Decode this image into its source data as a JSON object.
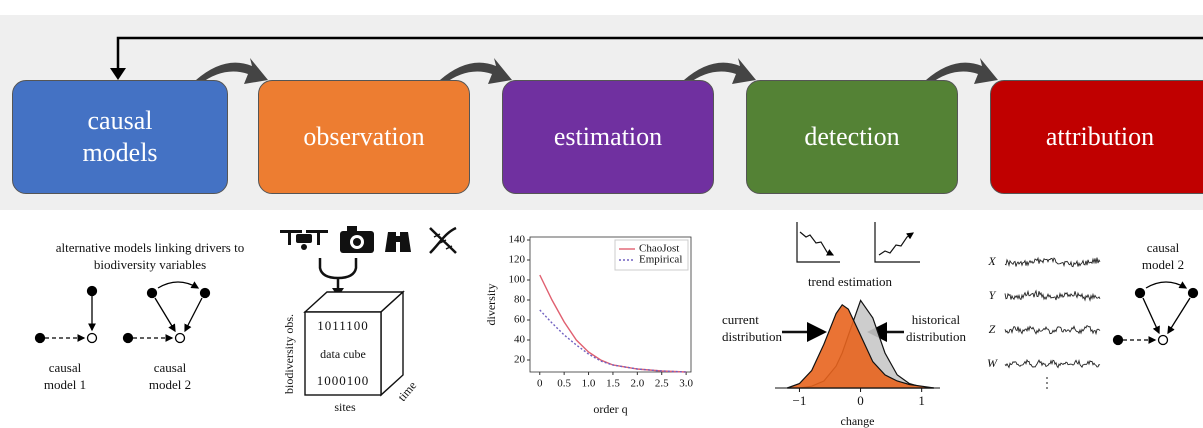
{
  "stages": [
    "causal models",
    "observation",
    "estimation",
    "detection",
    "attribution"
  ],
  "causal_panel": {
    "caption": "alternative models linking drivers to biodiversity variables",
    "model_1": "causal model 1",
    "model_2": "causal model 2"
  },
  "observation_panel": {
    "cube_rows": [
      "1011100",
      "1000100"
    ],
    "cube_label": "data cube",
    "y_label": "biodiversity obs.",
    "x_label": "sites",
    "z_label": "time"
  },
  "detection_panel": {
    "trend_caption": "trend estimation"
  },
  "attribution_panel": {
    "variables": [
      "X",
      "Y",
      "Z",
      "W"
    ],
    "model_label": "causal model 2"
  },
  "chart_data": [
    {
      "type": "line",
      "xlabel": "order q",
      "ylabel": "diversity",
      "x": [
        0,
        0.25,
        0.5,
        0.75,
        1,
        1.25,
        1.5,
        2,
        2.5,
        3
      ],
      "series": [
        {
          "name": "ChaoJost",
          "color": "#e06070",
          "values": [
            105,
            80,
            58,
            40,
            28,
            20,
            15,
            11,
            9,
            8
          ]
        },
        {
          "name": "Empirical",
          "color": "#7060c0",
          "values": [
            70,
            57,
            45,
            35,
            26,
            19,
            15,
            11,
            9,
            8
          ]
        }
      ],
      "xlim": [
        -0.2,
        3.1
      ],
      "ylim": [
        8,
        143
      ],
      "xticks": [
        0,
        0.5,
        {
          "value": 1,
          "label": "1.0"
        },
        1.5,
        {
          "value": 2,
          "label": "2.0"
        },
        2.5,
        {
          "value": 3,
          "label": "3.0"
        }
      ],
      "yticks": [
        20,
        40,
        60,
        80,
        100,
        120,
        140
      ],
      "legend": "upper right"
    },
    {
      "type": "area",
      "xlabel": "change",
      "x": [
        -1.2,
        -1,
        -0.8,
        -0.6,
        -0.4,
        -0.3,
        -0.2,
        0,
        0.2,
        0.4,
        0.6,
        0.8,
        1,
        1.2
      ],
      "series": [
        {
          "name": "historical distribution",
          "color": "#c8c8c8",
          "values": [
            0,
            0,
            0.02,
            0.08,
            0.25,
            0.4,
            0.6,
            1.0,
            0.8,
            0.4,
            0.15,
            0.05,
            0.01,
            0
          ]
        },
        {
          "name": "current distribution",
          "color": "#e8641e",
          "values": [
            0,
            0.05,
            0.2,
            0.5,
            0.85,
            0.95,
            0.9,
            0.6,
            0.3,
            0.15,
            0.08,
            0.04,
            0.02,
            0
          ]
        }
      ],
      "xlim": [
        -1.4,
        1.3
      ],
      "ylim": [
        0,
        1.05
      ],
      "xticks": [
        {
          "value": -1,
          "label": "−1"
        },
        0,
        1
      ]
    }
  ]
}
